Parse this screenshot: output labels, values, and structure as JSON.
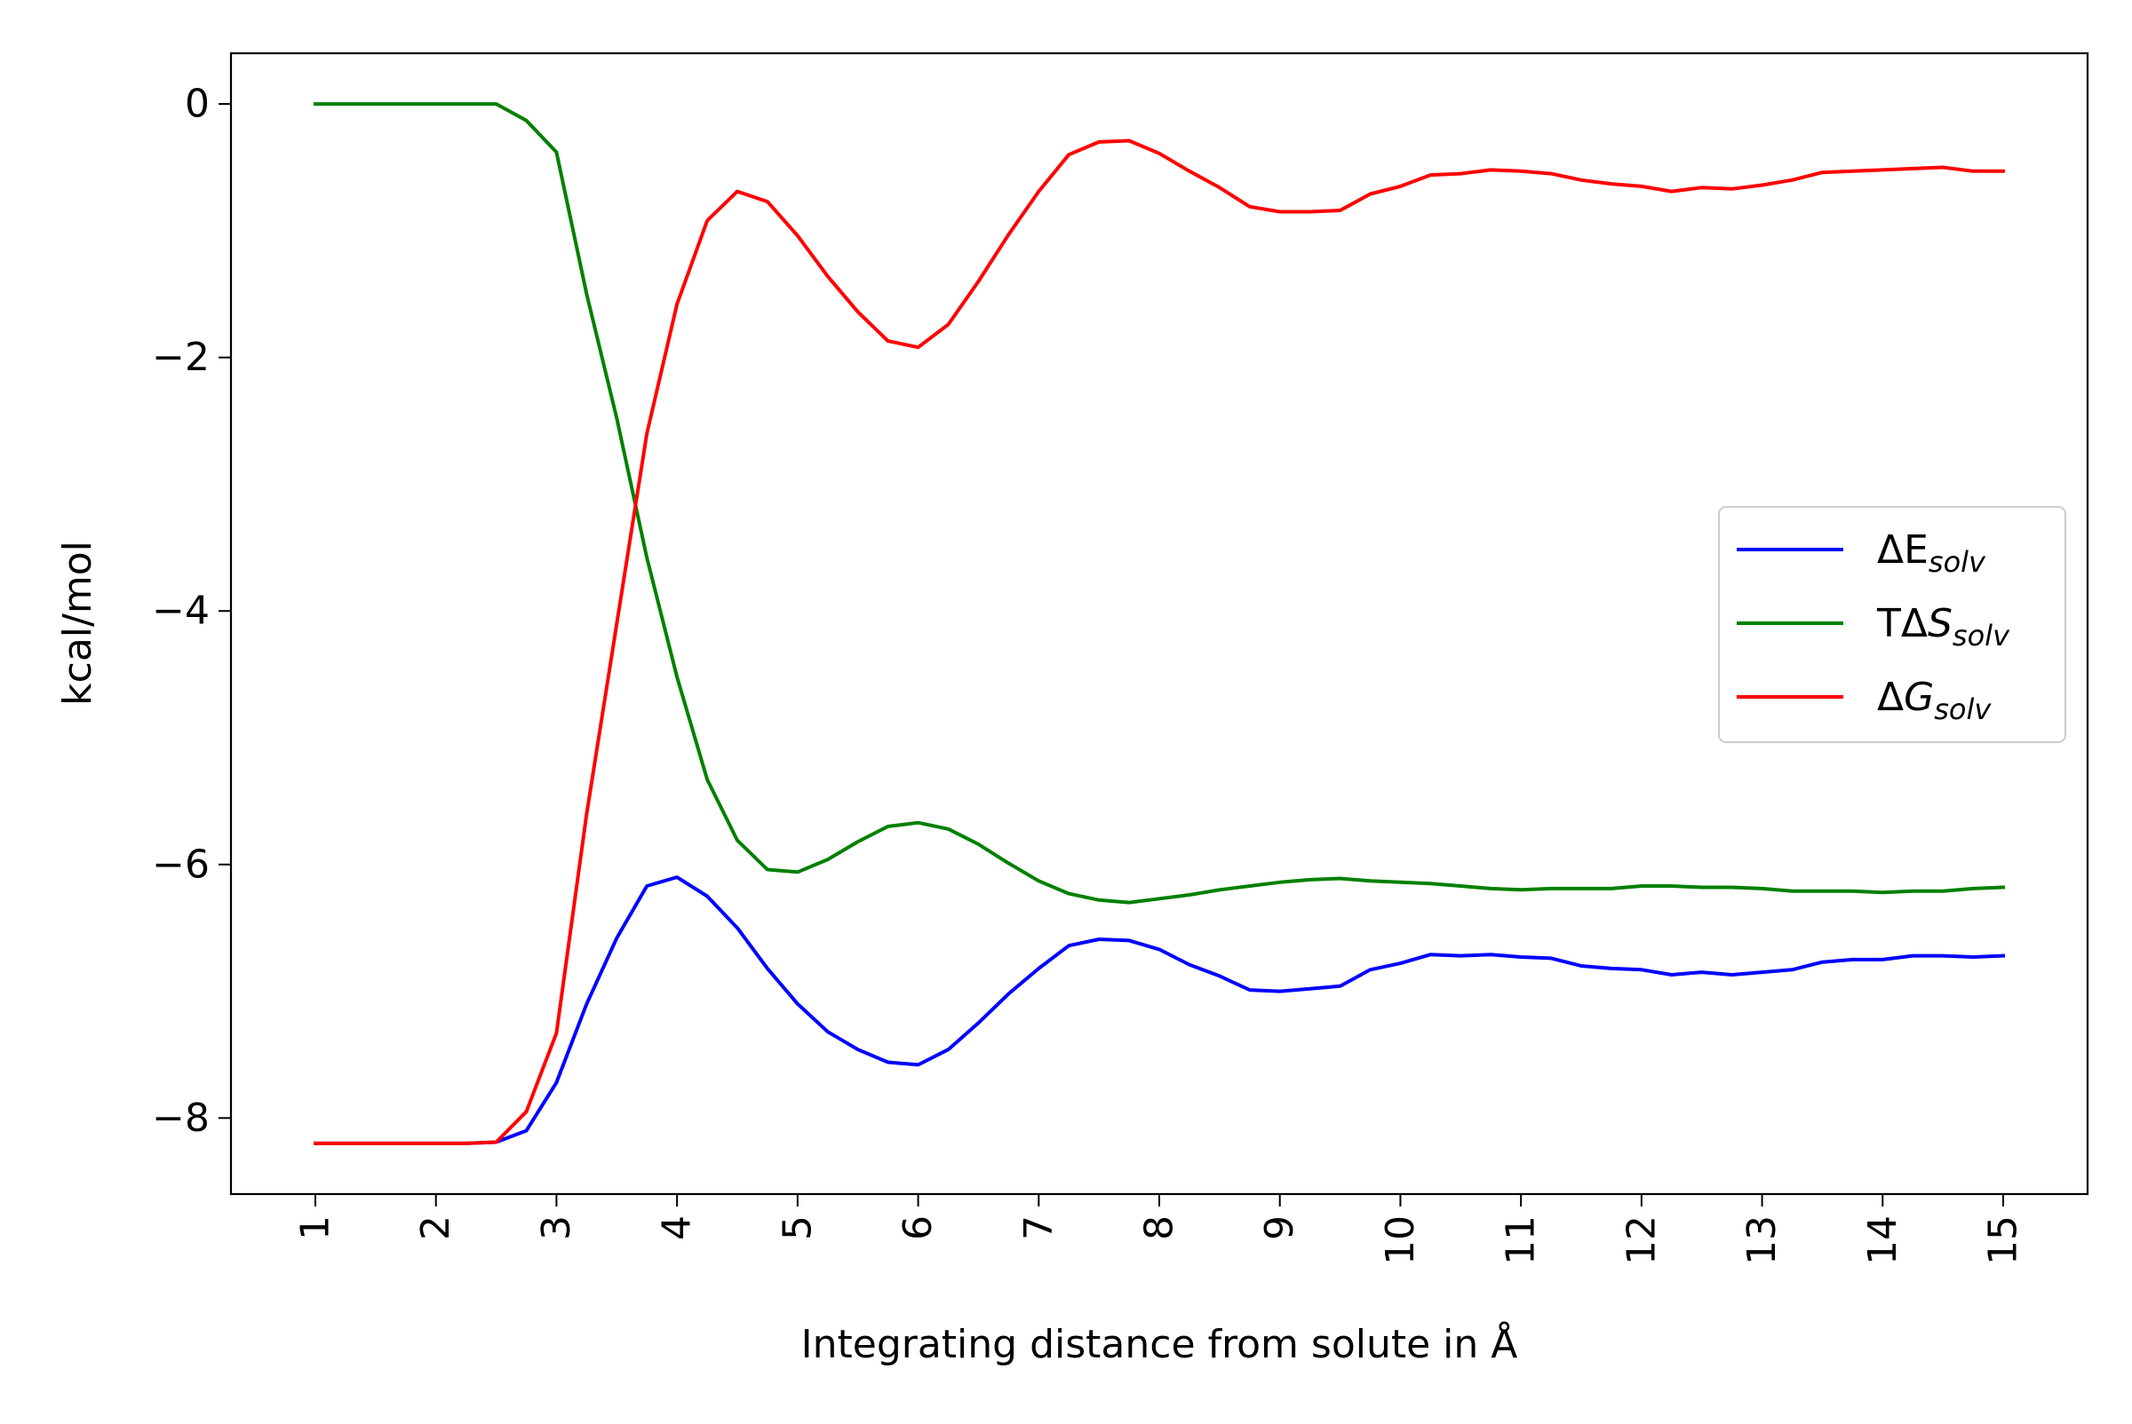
{
  "chart_data": {
    "type": "line",
    "title": "",
    "xlabel": "Integrating distance from solute in Å",
    "ylabel": "kcal/mol",
    "xlim": [
      0.3,
      15.7
    ],
    "ylim": [
      -8.6,
      0.4
    ],
    "x_ticks": [
      1,
      2,
      3,
      4,
      5,
      6,
      7,
      8,
      9,
      10,
      11,
      12,
      13,
      14,
      15
    ],
    "y_ticks": [
      0,
      -2,
      -4,
      -6,
      -8
    ],
    "y_tick_labels": [
      "0",
      "−2",
      "−4",
      "−6",
      "−8"
    ],
    "x_tick_rotation": "vertical",
    "grid": false,
    "legend_position": "center-right",
    "x": [
      1.0,
      1.25,
      1.5,
      1.75,
      2.0,
      2.25,
      2.5,
      2.75,
      3.0,
      3.25,
      3.5,
      3.75,
      4.0,
      4.25,
      4.5,
      4.75,
      5.0,
      5.25,
      5.5,
      5.75,
      6.0,
      6.25,
      6.5,
      6.75,
      7.0,
      7.25,
      7.5,
      7.75,
      8.0,
      8.25,
      8.5,
      8.75,
      9.0,
      9.25,
      9.5,
      9.75,
      10.0,
      10.25,
      10.5,
      10.75,
      11.0,
      11.25,
      11.5,
      11.75,
      12.0,
      12.25,
      12.5,
      12.75,
      13.0,
      13.25,
      13.5,
      13.75,
      14.0,
      14.25,
      14.5,
      14.75,
      15.0
    ],
    "series": [
      {
        "name": "ΔE_solv",
        "label_main": "ΔE",
        "label_sub": "solv",
        "color": "#0000ff",
        "values": [
          -8.2,
          -8.2,
          -8.2,
          -8.2,
          -8.2,
          -8.2,
          -8.19,
          -8.1,
          -7.72,
          -7.1,
          -6.58,
          -6.17,
          -6.1,
          -6.25,
          -6.5,
          -6.82,
          -7.1,
          -7.32,
          -7.46,
          -7.56,
          -7.58,
          -7.46,
          -7.25,
          -7.02,
          -6.82,
          -6.64,
          -6.59,
          -6.6,
          -6.67,
          -6.79,
          -6.88,
          -6.99,
          -7.0,
          -6.98,
          -6.96,
          -6.83,
          -6.78,
          -6.71,
          -6.72,
          -6.71,
          -6.73,
          -6.74,
          -6.8,
          -6.82,
          -6.83,
          -6.87,
          -6.85,
          -6.87,
          -6.85,
          -6.83,
          -6.77,
          -6.75,
          -6.75,
          -6.72,
          -6.72,
          -6.73,
          -6.72
        ]
      },
      {
        "name": "TΔS_solv",
        "label_main": "TΔ",
        "label_italic": "S",
        "label_sub": "solv",
        "color": "#008000",
        "values": [
          0.0,
          0.0,
          0.0,
          0.0,
          0.0,
          0.0,
          0.0,
          -0.13,
          -0.38,
          -1.5,
          -2.48,
          -3.58,
          -4.52,
          -5.33,
          -5.81,
          -6.04,
          -6.06,
          -5.96,
          -5.82,
          -5.7,
          -5.67,
          -5.72,
          -5.84,
          -5.99,
          -6.13,
          -6.23,
          -6.28,
          -6.3,
          -6.27,
          -6.24,
          -6.2,
          -6.17,
          -6.14,
          -6.12,
          -6.11,
          -6.13,
          -6.14,
          -6.15,
          -6.17,
          -6.19,
          -6.2,
          -6.19,
          -6.19,
          -6.19,
          -6.17,
          -6.17,
          -6.18,
          -6.18,
          -6.19,
          -6.21,
          -6.21,
          -6.21,
          -6.22,
          -6.21,
          -6.21,
          -6.19,
          -6.18
        ]
      },
      {
        "name": "ΔG_solv",
        "label_main": "Δ",
        "label_italic": "G",
        "label_sub": "solv",
        "color": "#ff0000",
        "values": [
          -8.2,
          -8.2,
          -8.2,
          -8.2,
          -8.2,
          -8.2,
          -8.19,
          -7.95,
          -7.33,
          -5.6,
          -4.1,
          -2.6,
          -1.58,
          -0.92,
          -0.69,
          -0.77,
          -1.04,
          -1.36,
          -1.64,
          -1.87,
          -1.92,
          -1.74,
          -1.4,
          -1.03,
          -0.69,
          -0.4,
          -0.3,
          -0.29,
          -0.39,
          -0.53,
          -0.66,
          -0.81,
          -0.85,
          -0.85,
          -0.84,
          -0.71,
          -0.65,
          -0.56,
          -0.55,
          -0.52,
          -0.53,
          -0.55,
          -0.6,
          -0.63,
          -0.65,
          -0.69,
          -0.66,
          -0.67,
          -0.64,
          -0.6,
          -0.54,
          -0.53,
          -0.52,
          -0.51,
          -0.5,
          -0.53,
          -0.53
        ]
      }
    ]
  }
}
